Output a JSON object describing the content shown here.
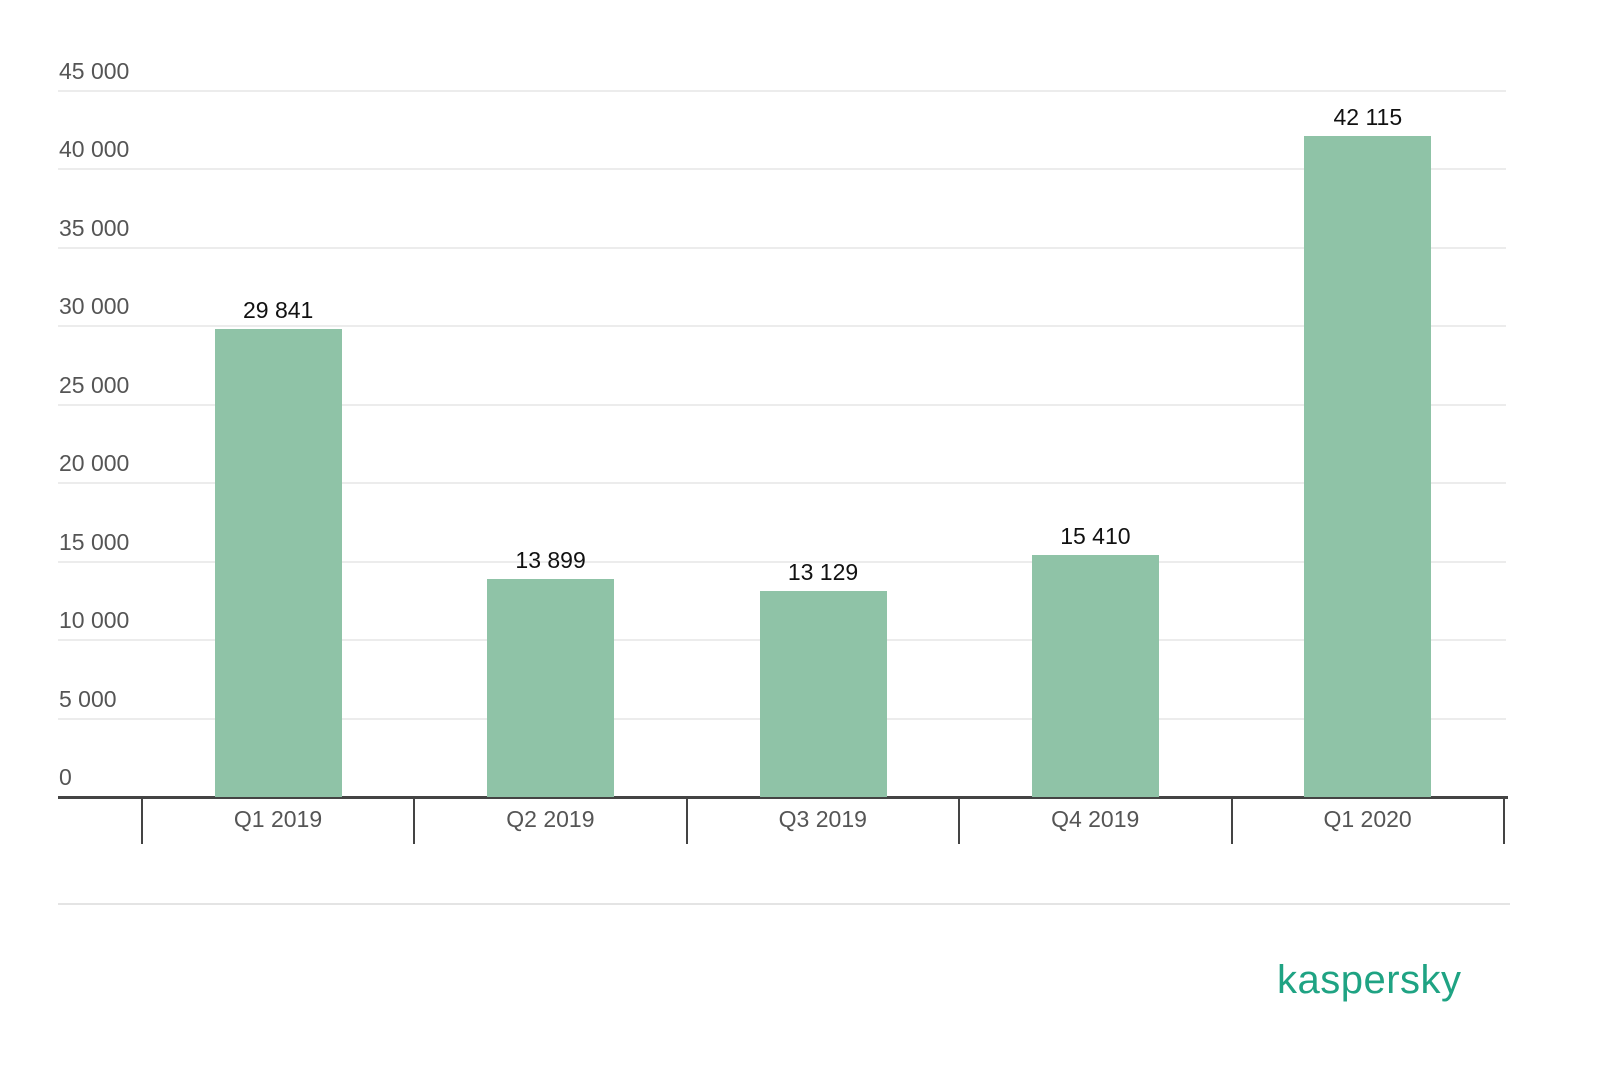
{
  "chart_data": {
    "type": "bar",
    "title": "",
    "xlabel": "",
    "ylabel": "",
    "categories": [
      "Q1 2019",
      "Q2 2019",
      "Q3 2019",
      "Q4 2019",
      "Q1 2020"
    ],
    "values": [
      29841,
      13899,
      13129,
      15410,
      42115
    ],
    "value_labels": [
      "29 841",
      "13 899",
      "13 129",
      "15 410",
      "42 115"
    ],
    "ylim": [
      0,
      45000
    ],
    "yticks": [
      0,
      5000,
      10000,
      15000,
      20000,
      25000,
      30000,
      35000,
      40000,
      45000
    ],
    "ytick_labels": [
      "0",
      "5 000",
      "10 000",
      "15 000",
      "20 000",
      "25 000",
      "30 000",
      "35 000",
      "40 000",
      "45 000"
    ],
    "grid": true,
    "legend": null,
    "bar_color": "#8fc3a7"
  },
  "brand": {
    "logo_text": "kaspersky",
    "color": "#1fa383"
  }
}
